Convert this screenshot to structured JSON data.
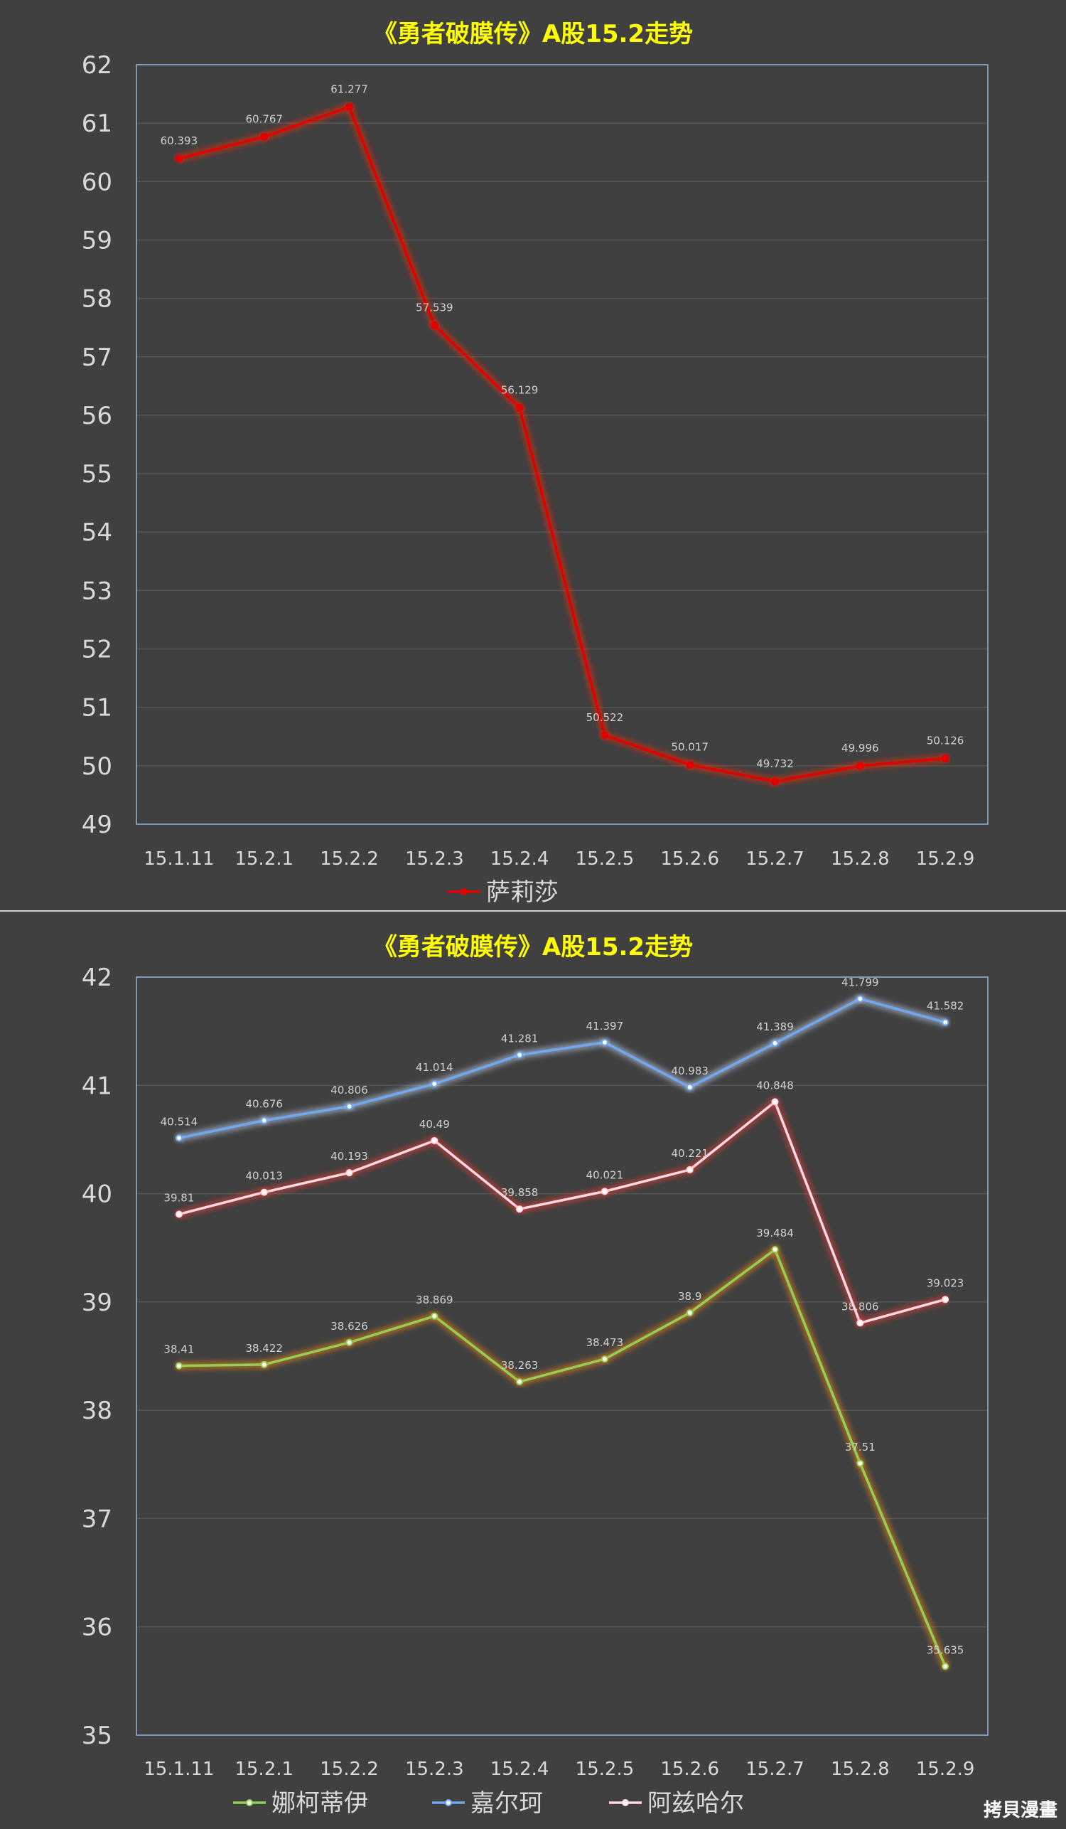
{
  "watermark": "拷貝漫畫",
  "chart_data": [
    {
      "type": "line",
      "title": "《勇者破膜传》A股15.2走势",
      "categories": [
        "15.1.11",
        "15.2.1",
        "15.2.2",
        "15.2.3",
        "15.2.4",
        "15.2.5",
        "15.2.6",
        "15.2.7",
        "15.2.8",
        "15.2.9"
      ],
      "ylim": [
        49,
        62
      ],
      "yticks": [
        49,
        50,
        51,
        52,
        53,
        54,
        55,
        56,
        57,
        58,
        59,
        60,
        61,
        62
      ],
      "grid": true,
      "legend_position": "bottom",
      "series": [
        {
          "name": "萨莉莎",
          "color": "#e00000",
          "glow": "#ff2a00",
          "values": [
            60.393,
            60.767,
            61.277,
            57.539,
            56.129,
            50.522,
            50.017,
            49.732,
            49.996,
            50.126
          ],
          "labels": [
            "60.393",
            "60.767",
            "61.277",
            "57.539",
            "56.129",
            "50.522",
            "50.017",
            "49.732",
            "49.996",
            "50.126"
          ]
        }
      ]
    },
    {
      "type": "line",
      "title": "《勇者破膜传》A股15.2走势",
      "categories": [
        "15.1.11",
        "15.2.1",
        "15.2.2",
        "15.2.3",
        "15.2.4",
        "15.2.5",
        "15.2.6",
        "15.2.7",
        "15.2.8",
        "15.2.9"
      ],
      "ylim": [
        35,
        42
      ],
      "yticks": [
        35,
        36,
        37,
        38,
        39,
        40,
        41,
        42
      ],
      "grid": true,
      "legend_position": "bottom",
      "series": [
        {
          "name": "娜柯蒂伊",
          "color": "#92d050",
          "glow": "#ff8c1a",
          "values": [
            38.41,
            38.422,
            38.626,
            38.869,
            38.263,
            38.473,
            38.9,
            39.484,
            37.51,
            35.635
          ],
          "labels": [
            "38.41",
            "38.422",
            "38.626",
            "38.869",
            "38.263",
            "38.473",
            "38.9",
            "39.484",
            "37.51",
            "35.635"
          ]
        },
        {
          "name": "嘉尔珂",
          "color": "#6fa8f0",
          "glow": "#c9dcff",
          "values": [
            40.514,
            40.676,
            40.806,
            41.014,
            41.281,
            41.397,
            40.983,
            41.389,
            41.799,
            41.582
          ],
          "labels": [
            "40.514",
            "40.676",
            "40.806",
            "41.014",
            "41.281",
            "41.397",
            "40.983",
            "41.389",
            "41.799",
            "41.582"
          ]
        },
        {
          "name": "阿兹哈尔",
          "color": "#ffd9e6",
          "glow": "#ff3b2f",
          "values": [
            39.81,
            40.013,
            40.193,
            40.49,
            39.858,
            40.021,
            40.221,
            40.848,
            38.806,
            39.023
          ],
          "labels": [
            "39.81",
            "40.013",
            "40.193",
            "40.49",
            "39.858",
            "40.021",
            "40.221",
            "40.848",
            "38.806",
            "39.023"
          ]
        }
      ]
    }
  ]
}
